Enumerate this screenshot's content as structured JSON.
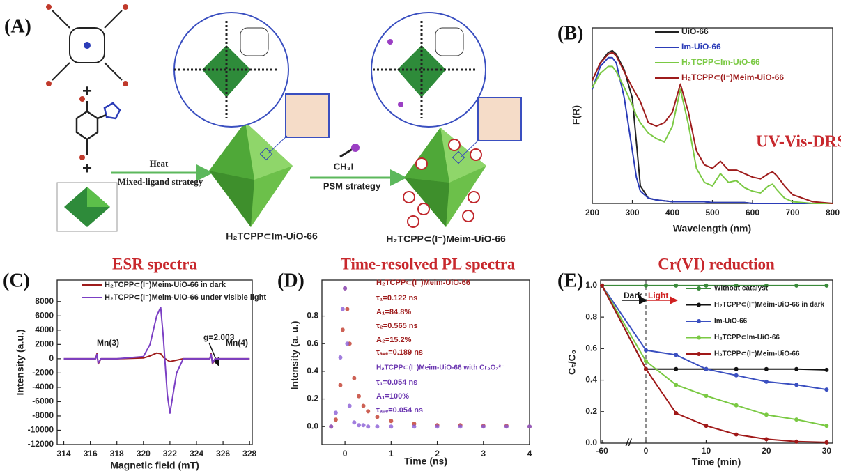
{
  "scheme": {
    "label": "(A)",
    "plus": [
      "+",
      "+"
    ],
    "arrow1": {
      "top": "Heat",
      "bottom": "Mixed-ligand strategy"
    },
    "arrow2": {
      "top": "CH₃I",
      "bottom": "PSM strategy"
    },
    "products": [
      "H₂TCPP⊂Im-UiO-66",
      "H₂TCPP⊂(I⁻)Meim-UiO-66"
    ]
  },
  "chart_data": [
    {
      "type": "line",
      "label": "(B)",
      "xlabel": "Wavelength (nm)",
      "ylabel": "F(R)",
      "annotations": [
        {
          "text": "UV-Vis-DRS",
          "color": "#c8282d"
        }
      ],
      "xlim": [
        200,
        800
      ],
      "xticks": [
        200,
        300,
        400,
        500,
        600,
        700,
        800
      ],
      "ylim": [
        0,
        1
      ],
      "x": [
        200,
        220,
        240,
        250,
        260,
        280,
        300,
        310,
        320,
        340,
        360,
        380,
        400,
        420,
        440,
        460,
        480,
        500,
        520,
        540,
        560,
        580,
        600,
        620,
        640,
        650,
        660,
        680,
        700,
        750,
        800
      ],
      "series": [
        {
          "name": "UiO-66",
          "color": "#222222",
          "values": [
            0.7,
            0.8,
            0.86,
            0.87,
            0.85,
            0.76,
            0.6,
            0.35,
            0.1,
            0.03,
            0.02,
            0.015,
            0.01,
            0.01,
            0.01,
            0.01,
            0.01,
            0.005,
            0.005,
            0.005,
            0.005,
            0.005,
            0,
            0,
            0,
            0,
            0,
            0,
            0,
            0,
            0
          ]
        },
        {
          "name": "Im-UiO-66",
          "color": "#2b3cb8",
          "values": [
            0.65,
            0.78,
            0.83,
            0.83,
            0.8,
            0.6,
            0.3,
            0.15,
            0.07,
            0.03,
            0.02,
            0.015,
            0.01,
            0.01,
            0.01,
            0.01,
            0.01,
            0.005,
            0.005,
            0.005,
            0.005,
            0.005,
            0,
            0,
            0,
            0,
            0,
            0,
            0,
            0,
            0
          ]
        },
        {
          "name": "H₂TCPP⊂Im-UiO-66",
          "color": "#7ac943",
          "values": [
            0.66,
            0.74,
            0.78,
            0.78,
            0.75,
            0.66,
            0.56,
            0.5,
            0.46,
            0.4,
            0.37,
            0.35,
            0.44,
            0.65,
            0.45,
            0.2,
            0.12,
            0.1,
            0.17,
            0.12,
            0.13,
            0.09,
            0.07,
            0.06,
            0.1,
            0.11,
            0.08,
            0.03,
            0.01,
            0,
            0
          ]
        },
        {
          "name": "H₂TCPP⊂(I⁻)Meim-UiO-66",
          "color": "#9e1c1c",
          "values": [
            0.7,
            0.8,
            0.85,
            0.86,
            0.84,
            0.75,
            0.66,
            0.62,
            0.58,
            0.46,
            0.44,
            0.46,
            0.52,
            0.68,
            0.52,
            0.3,
            0.22,
            0.2,
            0.24,
            0.19,
            0.19,
            0.17,
            0.15,
            0.14,
            0.17,
            0.18,
            0.16,
            0.1,
            0.05,
            0.01,
            0
          ]
        }
      ]
    },
    {
      "type": "line",
      "label": "(C)",
      "title": "ESR spectra",
      "xlabel": "Magnetic field (mT)",
      "ylabel": "Intensity (a.u.)",
      "annotations": [
        {
          "text": "Mn(3)",
          "color": "#222"
        },
        {
          "text": "Mn(4)",
          "color": "#222"
        },
        {
          "text": "g=2.003",
          "color": "#222"
        }
      ],
      "xlim": [
        313.5,
        328.2
      ],
      "xticks": [
        314,
        316,
        318,
        320,
        322,
        324,
        326,
        328
      ],
      "ylim": [
        -12000,
        11000
      ],
      "yticks": [
        -12000,
        -10000,
        -8000,
        -6000,
        -4000,
        -2000,
        0,
        2000,
        4000,
        6000,
        8000
      ],
      "x": [
        314,
        316,
        316.4,
        316.5,
        316.6,
        316.8,
        318,
        320,
        320.5,
        321,
        321.3,
        321.5,
        321.8,
        322,
        322.5,
        323,
        325,
        325.1,
        325.2,
        325.4,
        326,
        328
      ],
      "series": [
        {
          "name": "H₂TCPP⊂(I⁻)Meim-UiO-66 in dark",
          "color": "#9e1c1c",
          "values": [
            0,
            0,
            0,
            700,
            -700,
            0,
            0,
            100,
            400,
            800,
            700,
            200,
            -200,
            -400,
            -200,
            0,
            0,
            700,
            -700,
            0,
            0,
            0
          ]
        },
        {
          "name": "H₂TCPP⊂(I⁻)Meim-UiO-66 under visible light",
          "color": "#7b3fc4",
          "values": [
            0,
            0,
            0,
            600,
            -600,
            0,
            0,
            300,
            2000,
            6000,
            7200,
            3000,
            -5000,
            -7600,
            -2000,
            0,
            0,
            600,
            -600,
            0,
            0,
            0
          ]
        }
      ]
    },
    {
      "type": "scatter",
      "label": "(D)",
      "title": "Time-resolved PL spectra",
      "xlabel": "Time (ns)",
      "ylabel": "Intensity (a. u.)",
      "annotations": [
        {
          "text": "H₂TCPP⊂(I⁻)Meim-UiO-66",
          "color": "#9e1c1c"
        },
        {
          "text": "τ₁=0.122 ns",
          "color": "#9e1c1c"
        },
        {
          "text": "A₁=84.8%",
          "color": "#9e1c1c"
        },
        {
          "text": "τ₂=0.565 ns",
          "color": "#9e1c1c"
        },
        {
          "text": "A₂=15.2%",
          "color": "#9e1c1c"
        },
        {
          "text": "τₐᵥₑ=0.189 ns",
          "color": "#9e1c1c"
        },
        {
          "text": "H₂TCPP⊂(I⁻)Meim-UiO-66 with Cr₂O₇²⁻",
          "color": "#6a35b0"
        },
        {
          "text": "τ₁=0.054 ns",
          "color": "#6a35b0"
        },
        {
          "text": "A₁=100%",
          "color": "#6a35b0"
        },
        {
          "text": "τₐᵥₑ=0.054 ns",
          "color": "#6a35b0"
        }
      ],
      "xlim": [
        -0.5,
        4
      ],
      "xticks": [
        0,
        1,
        2,
        3,
        4
      ],
      "ylim": [
        -0.13,
        1.06
      ],
      "yticks": [
        {
          "value": 0,
          "label": "0.0"
        },
        0.2,
        0.4,
        0.6,
        0.8
      ],
      "x": [
        -0.3,
        -0.2,
        -0.1,
        -0.05,
        0,
        0.05,
        0.1,
        0.2,
        0.3,
        0.4,
        0.5,
        0.7,
        1,
        1.5,
        2,
        2.5,
        3,
        3.5,
        4
      ],
      "series": [
        {
          "color": "#c0392b",
          "values": [
            0,
            0.05,
            0.3,
            0.7,
            1.0,
            0.85,
            0.6,
            0.35,
            0.22,
            0.15,
            0.11,
            0.07,
            0.04,
            0.02,
            0.01,
            0.01,
            0.005,
            0.005,
            0
          ]
        },
        {
          "color": "#8a5cd6",
          "values": [
            0,
            0.1,
            0.5,
            0.85,
            1.0,
            0.6,
            0.15,
            0.03,
            0.01,
            0.01,
            0,
            0,
            0,
            0,
            0,
            0,
            0,
            0,
            0
          ]
        }
      ]
    },
    {
      "type": "line",
      "markers": true,
      "label": "(E)",
      "title": "Cr(VI) reduction",
      "xlabel": "Time (min)",
      "ylabel": "Cₜ/C₀",
      "annotations": [
        {
          "text": "Dark",
          "color": "#111"
        },
        {
          "text": "Light",
          "color": "#d02020"
        }
      ],
      "xlim": [
        -62,
        31
      ],
      "xticks": [
        -60,
        0,
        10,
        20,
        30
      ],
      "ylim": [
        0,
        1.035
      ],
      "yticks": [
        {
          "value": 0,
          "label": "0.0"
        },
        0.2,
        0.4,
        0.6,
        0.8,
        {
          "value": 1,
          "label": "1.0"
        }
      ],
      "x": [
        -60,
        0,
        5,
        10,
        15,
        20,
        25,
        30
      ],
      "series": [
        {
          "name": "Without catalyst",
          "color": "#3a8a3a",
          "values": [
            1,
            1,
            1,
            1,
            1,
            1,
            1,
            1
          ]
        },
        {
          "name": "H₂TCPP⊂(I⁻)Meim-UiO-66 in dark",
          "color": "#111111",
          "values": [
            1,
            0.47,
            0.47,
            0.47,
            0.47,
            0.47,
            0.47,
            0.465
          ]
        },
        {
          "name": "Im-UiO-66",
          "color": "#3a4fc0",
          "values": [
            1,
            0.59,
            0.56,
            0.47,
            0.43,
            0.39,
            0.37,
            0.34
          ]
        },
        {
          "name": "H₂TCPP⊂Im-UiO-66",
          "color": "#7ac943",
          "values": [
            1,
            0.52,
            0.37,
            0.3,
            0.24,
            0.18,
            0.15,
            0.11
          ]
        },
        {
          "name": "H₂TCPP⊂(I⁻)Meim-UiO-66",
          "color": "#a01818",
          "values": [
            1,
            0.47,
            0.19,
            0.11,
            0.055,
            0.025,
            0.01,
            0.005
          ]
        }
      ]
    }
  ]
}
